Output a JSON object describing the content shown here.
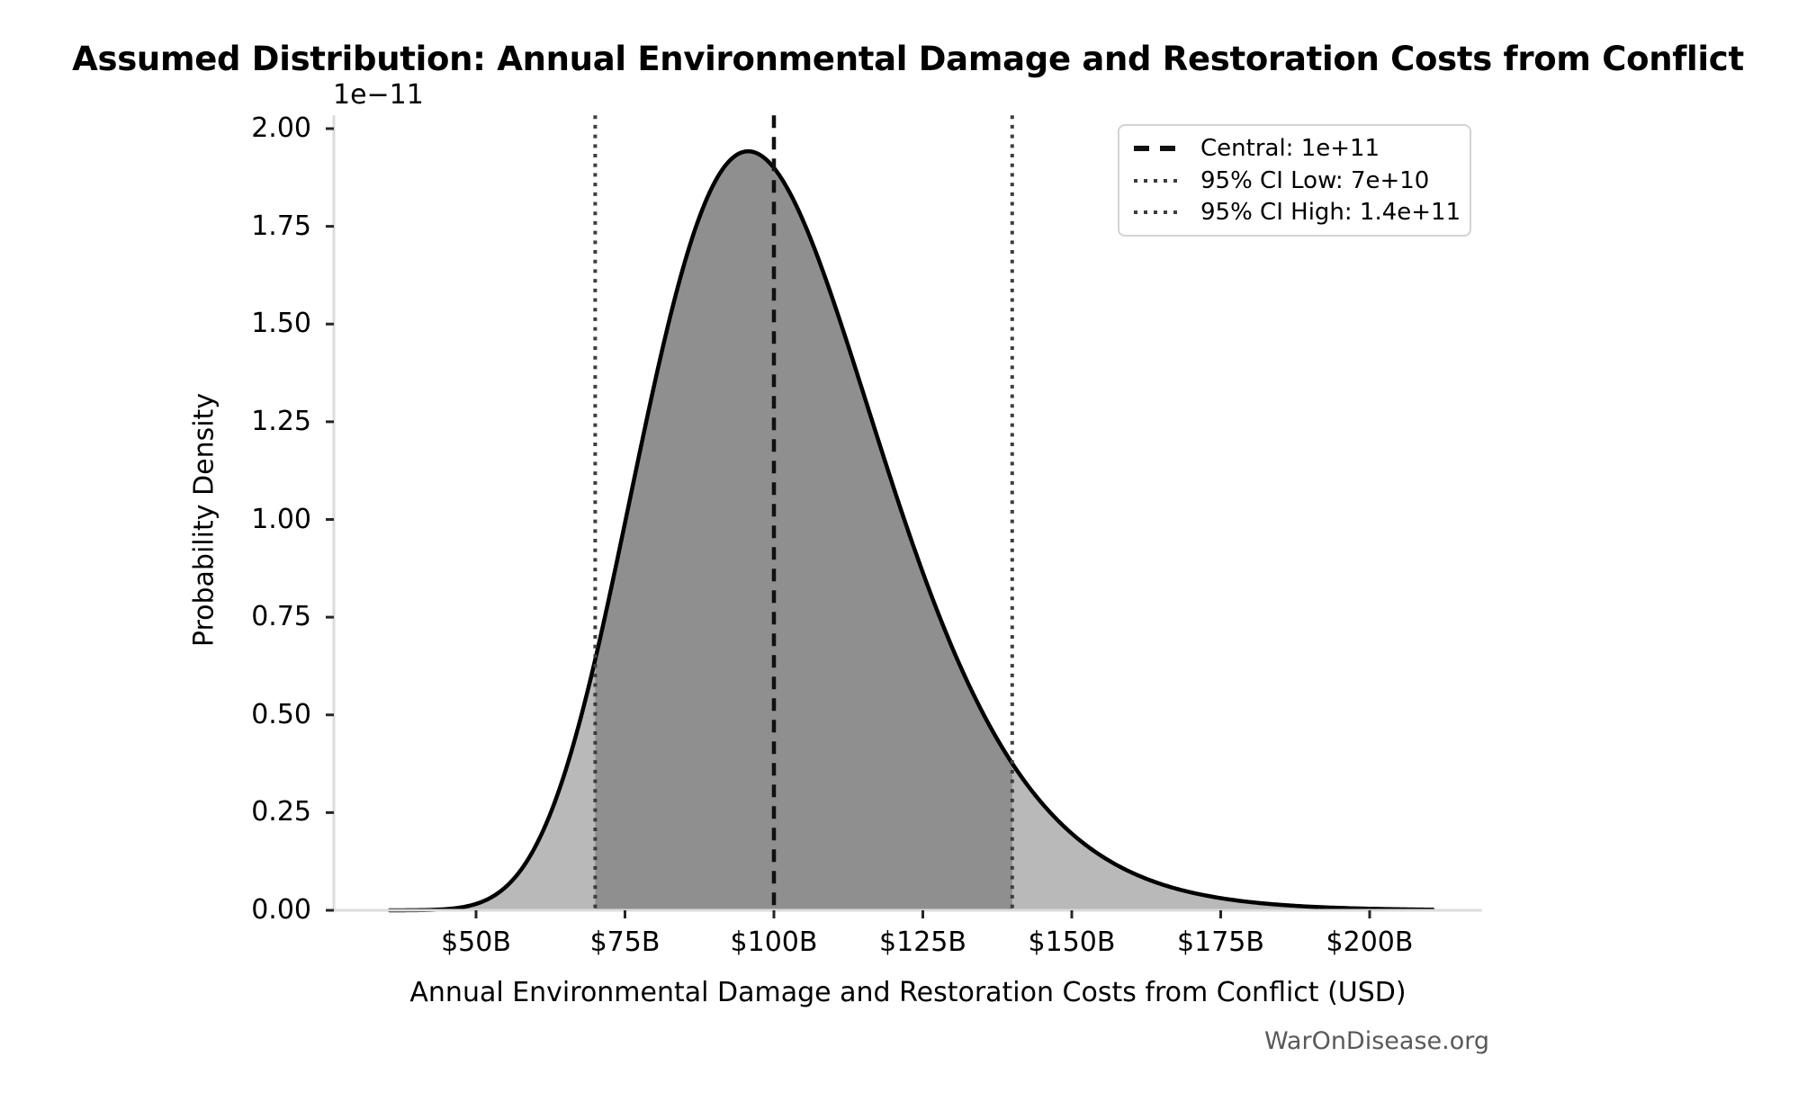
{
  "title": "Assumed Distribution: Annual Environmental Damage and Restoration Costs from Conflict",
  "watermark": "WarOnDisease.org",
  "chart_data": {
    "type": "area",
    "subtype": "probability-density-curve",
    "title": "Assumed Distribution: Annual Environmental Damage and Restoration Costs from Conflict",
    "xlabel": "Annual Environmental Damage and Restoration Costs from Conflict (USD)",
    "ylabel": "Probability Density",
    "y_axis_offset_label": "1e−11",
    "grid": false,
    "legend_position": "upper right",
    "xlim_billion": [
      26,
      219
    ],
    "ylim": [
      0,
      2.034
    ],
    "x_ticks": [
      {
        "label": "$50B",
        "value": 50
      },
      {
        "label": "$75B",
        "value": 75
      },
      {
        "label": "$100B",
        "value": 100
      },
      {
        "label": "$125B",
        "value": 125
      },
      {
        "label": "$150B",
        "value": 150
      },
      {
        "label": "$175B",
        "value": 175
      },
      {
        "label": "$200B",
        "value": 200
      }
    ],
    "y_ticks": [
      {
        "label": "0.00",
        "value": 0
      },
      {
        "label": "0.25",
        "value": 0.25
      },
      {
        "label": "0.50",
        "value": 0.5
      },
      {
        "label": "0.75",
        "value": 0.75
      },
      {
        "label": "1.00",
        "value": 1
      },
      {
        "label": "1.25",
        "value": 1.25
      },
      {
        "label": "1.50",
        "value": 1.5
      },
      {
        "label": "1.75",
        "value": 1.75
      },
      {
        "label": "2.00",
        "value": 2
      }
    ],
    "distribution": {
      "family": "lognormal",
      "median_billion": 100,
      "sigma_log": 0.21,
      "central_billion": 100,
      "ci_low_billion": 70,
      "ci_high_billion": 140,
      "peak_density_1e-11": 1.94,
      "curve_range_billion": [
        35.5,
        210.6
      ]
    },
    "legend": [
      {
        "label": "Central: 1e+11",
        "style": "dashed",
        "color": "#111111"
      },
      {
        "label": "95% CI Low: 7e+10",
        "style": "dotted",
        "color": "#3d3d3d"
      },
      {
        "label": "95% CI High: 1.4e+11",
        "style": "dotted",
        "color": "#3d3d3d"
      }
    ],
    "colors": {
      "curve": "#000000",
      "fill_outer": "#b9b9b9",
      "fill_inner": "#8f8f8f",
      "central_line": "#111111",
      "ci_line": "#3d3d3d",
      "spine": "#dcdcdc",
      "tick": "#262626",
      "text": "#000000",
      "watermark": "#595959",
      "legend_border": "#d3d3d3"
    }
  }
}
